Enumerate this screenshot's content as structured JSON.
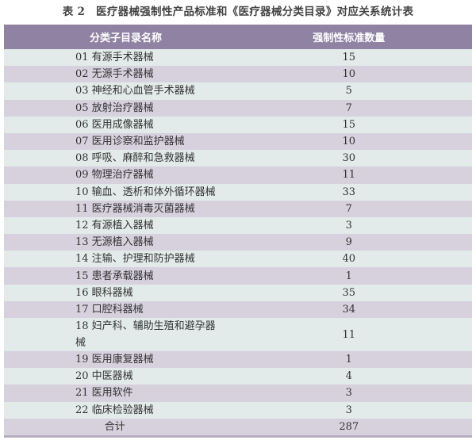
{
  "title": "表 2　医疗器械强制性产品标准和《医疗器械分类目录》对应关系统计表",
  "headers": {
    "name": "分类子目录名称",
    "count": "强制性标准数量"
  },
  "rows": [
    {
      "name": "01 有源手术器械",
      "count": "15"
    },
    {
      "name": "02 无源手术器械",
      "count": "10"
    },
    {
      "name": "03 神经和心血管手术器械",
      "count": "5"
    },
    {
      "name": "05 放射治疗器械",
      "count": "7"
    },
    {
      "name": "06 医用成像器械",
      "count": "15"
    },
    {
      "name": "07 医用诊察和监护器械",
      "count": "10"
    },
    {
      "name": "08 呼吸、麻醉和急救器械",
      "count": "30"
    },
    {
      "name": "09 物理治疗器械",
      "count": "11"
    },
    {
      "name": "10 输血、透析和体外循环器械",
      "count": "33"
    },
    {
      "name": "11 医疗器械消毒灭菌器械",
      "count": "7"
    },
    {
      "name": "12 有源植入器械",
      "count": "3"
    },
    {
      "name": "13 无源植入器械",
      "count": "9"
    },
    {
      "name": "14 注输、护理和防护器械",
      "count": "40"
    },
    {
      "name": "15 患者承载器械",
      "count": "1"
    },
    {
      "name": "16 眼科器械",
      "count": "35"
    },
    {
      "name": "17 口腔科器械",
      "count": "34"
    },
    {
      "name": "18 妇产科、辅助生殖和避孕器械",
      "count": "11"
    },
    {
      "name": "19 医用康复器械",
      "count": "1"
    },
    {
      "name": "20 中医器械",
      "count": "4"
    },
    {
      "name": "21 医用软件",
      "count": "3"
    },
    {
      "name": "22 临床检验器械",
      "count": "3"
    }
  ],
  "total": {
    "name": "合计",
    "count": "287"
  },
  "colors": {
    "header": "#8f82a2",
    "row_light": "#e2ebe9",
    "row_purple": "#d7d1de"
  }
}
